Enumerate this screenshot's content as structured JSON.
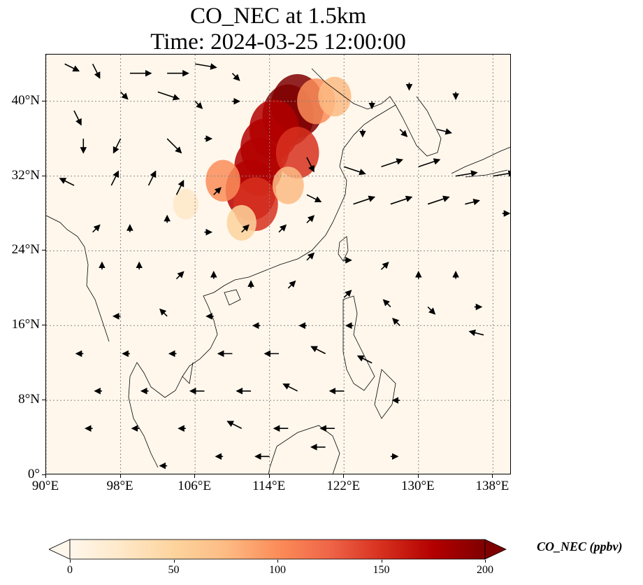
{
  "title": {
    "line1": "CO_NEC at 1.5km",
    "line2": "Time: 2024-03-25 12:00:00"
  },
  "map": {
    "extent": {
      "lon_min": 90,
      "lon_max": 140,
      "lat_min": 0,
      "lat_max": 45
    },
    "lat_ticks": [
      {
        "value": 0,
        "label": "0°"
      },
      {
        "value": 8,
        "label": "8°N"
      },
      {
        "value": 16,
        "label": "16°N"
      },
      {
        "value": 24,
        "label": "24°N"
      },
      {
        "value": 32,
        "label": "32°N"
      },
      {
        "value": 40,
        "label": "40°N"
      }
    ],
    "lon_ticks": [
      {
        "value": 90,
        "label": "90°E"
      },
      {
        "value": 98,
        "label": "98°E"
      },
      {
        "value": 106,
        "label": "106°E"
      },
      {
        "value": 114,
        "label": "114°E"
      },
      {
        "value": 122,
        "label": "122°E"
      },
      {
        "value": 130,
        "label": "130°E"
      },
      {
        "value": 138,
        "label": "138°E"
      }
    ],
    "gridlines": true,
    "plume_regions_lonlat_value": [
      {
        "lon": 117.0,
        "lat": 39.5,
        "value": 200
      },
      {
        "lon": 116.0,
        "lat": 38.5,
        "value": 190
      },
      {
        "lon": 114.5,
        "lat": 37.0,
        "value": 180
      },
      {
        "lon": 113.5,
        "lat": 35.0,
        "value": 175
      },
      {
        "lon": 112.8,
        "lat": 33.0,
        "value": 170
      },
      {
        "lon": 112.0,
        "lat": 30.5,
        "value": 185
      },
      {
        "lon": 112.5,
        "lat": 29.0,
        "value": 150
      },
      {
        "lon": 117.0,
        "lat": 34.5,
        "value": 140
      },
      {
        "lon": 119.0,
        "lat": 40.0,
        "value": 110
      },
      {
        "lon": 109.0,
        "lat": 31.5,
        "value": 90
      },
      {
        "lon": 111.0,
        "lat": 27.0,
        "value": 60
      },
      {
        "lon": 116.0,
        "lat": 31.0,
        "value": 70
      },
      {
        "lon": 105.0,
        "lat": 29.0,
        "value": 35
      },
      {
        "lon": 121.0,
        "lat": 40.5,
        "value": 80
      }
    ],
    "wind_vectors": [
      {
        "lon": 92,
        "lat": 44,
        "u": 2,
        "v": -1
      },
      {
        "lon": 95,
        "lat": 44,
        "u": 1,
        "v": -2
      },
      {
        "lon": 99,
        "lat": 43,
        "u": 3,
        "v": 0
      },
      {
        "lon": 103,
        "lat": 43,
        "u": 3,
        "v": 0
      },
      {
        "lon": 106,
        "lat": 44,
        "u": 3,
        "v": -0.5
      },
      {
        "lon": 110,
        "lat": 43,
        "u": 1,
        "v": -1
      },
      {
        "lon": 93,
        "lat": 39,
        "u": 1,
        "v": -2
      },
      {
        "lon": 98,
        "lat": 41,
        "u": 1,
        "v": -1
      },
      {
        "lon": 102,
        "lat": 41,
        "u": 3,
        "v": -1
      },
      {
        "lon": 106,
        "lat": 40,
        "u": 1,
        "v": -1
      },
      {
        "lon": 110,
        "lat": 40,
        "u": 1,
        "v": 0
      },
      {
        "lon": 94,
        "lat": 36,
        "u": 0,
        "v": -2
      },
      {
        "lon": 98,
        "lat": 36,
        "u": -1,
        "v": -2
      },
      {
        "lon": 103,
        "lat": 36,
        "u": 2,
        "v": -2
      },
      {
        "lon": 107,
        "lat": 36,
        "u": 1,
        "v": 0
      },
      {
        "lon": 93,
        "lat": 31,
        "u": -2,
        "v": 1
      },
      {
        "lon": 97,
        "lat": 31,
        "u": 1,
        "v": 2
      },
      {
        "lon": 101,
        "lat": 31,
        "u": 1,
        "v": 2
      },
      {
        "lon": 104,
        "lat": 30,
        "u": 1,
        "v": 2
      },
      {
        "lon": 108,
        "lat": 30,
        "u": 1,
        "v": 1
      },
      {
        "lon": 95,
        "lat": 26,
        "u": 1,
        "v": 1
      },
      {
        "lon": 99,
        "lat": 26,
        "u": 0,
        "v": 1
      },
      {
        "lon": 103,
        "lat": 27,
        "u": 0,
        "v": 1
      },
      {
        "lon": 107,
        "lat": 26,
        "u": 1,
        "v": 0
      },
      {
        "lon": 111,
        "lat": 26,
        "u": 1,
        "v": 1
      },
      {
        "lon": 115,
        "lat": 26,
        "u": 1,
        "v": 1
      },
      {
        "lon": 118,
        "lat": 27,
        "u": 1,
        "v": 1
      },
      {
        "lon": 118,
        "lat": 30,
        "u": 2,
        "v": -1
      },
      {
        "lon": 118,
        "lat": 34,
        "u": 1,
        "v": -2
      },
      {
        "lon": 122,
        "lat": 33,
        "u": 3,
        "v": -1
      },
      {
        "lon": 126,
        "lat": 33,
        "u": 3,
        "v": 1
      },
      {
        "lon": 130,
        "lat": 33,
        "u": 3,
        "v": 1
      },
      {
        "lon": 134,
        "lat": 32,
        "u": 3,
        "v": 0.5
      },
      {
        "lon": 138,
        "lat": 32,
        "u": 3,
        "v": 0.5
      },
      {
        "lon": 123,
        "lat": 29,
        "u": 3,
        "v": 1
      },
      {
        "lon": 127,
        "lat": 29,
        "u": 3,
        "v": 1
      },
      {
        "lon": 131,
        "lat": 29,
        "u": 3,
        "v": 1
      },
      {
        "lon": 135,
        "lat": 29,
        "u": 2,
        "v": 0.5
      },
      {
        "lon": 139,
        "lat": 28,
        "u": 1,
        "v": 0
      },
      {
        "lon": 124,
        "lat": 37,
        "u": 0,
        "v": -1
      },
      {
        "lon": 128,
        "lat": 37,
        "u": 1,
        "v": -1
      },
      {
        "lon": 132,
        "lat": 37,
        "u": 2,
        "v": -0.5
      },
      {
        "lon": 125,
        "lat": 40,
        "u": 0,
        "v": -1
      },
      {
        "lon": 129,
        "lat": 42,
        "u": 0,
        "v": -1
      },
      {
        "lon": 134,
        "lat": 41,
        "u": 0,
        "v": -1
      },
      {
        "lon": 118,
        "lat": 23,
        "u": 1,
        "v": 1
      },
      {
        "lon": 122,
        "lat": 23,
        "u": 1,
        "v": 0
      },
      {
        "lon": 126,
        "lat": 22,
        "u": 1,
        "v": 1
      },
      {
        "lon": 130,
        "lat": 21,
        "u": 0,
        "v": 1
      },
      {
        "lon": 134,
        "lat": 21,
        "u": 0,
        "v": 1
      },
      {
        "lon": 96,
        "lat": 22,
        "u": 0,
        "v": 1
      },
      {
        "lon": 100,
        "lat": 22,
        "u": 0,
        "v": 1
      },
      {
        "lon": 104,
        "lat": 21,
        "u": 1,
        "v": 1
      },
      {
        "lon": 108,
        "lat": 21,
        "u": 0,
        "v": 1
      },
      {
        "lon": 112,
        "lat": 20,
        "u": 0,
        "v": 1
      },
      {
        "lon": 116,
        "lat": 20,
        "u": 1,
        "v": 1
      },
      {
        "lon": 122,
        "lat": 19,
        "u": 1,
        "v": 1
      },
      {
        "lon": 127,
        "lat": 18,
        "u": -1,
        "v": 1
      },
      {
        "lon": 131,
        "lat": 18,
        "u": 1,
        "v": -1
      },
      {
        "lon": 136,
        "lat": 18,
        "u": 1,
        "v": 0
      },
      {
        "lon": 98,
        "lat": 17,
        "u": -1,
        "v": 0
      },
      {
        "lon": 103,
        "lat": 17,
        "u": -1,
        "v": 1
      },
      {
        "lon": 108,
        "lat": 17,
        "u": -1,
        "v": 0
      },
      {
        "lon": 113,
        "lat": 16,
        "u": -1,
        "v": 0
      },
      {
        "lon": 118,
        "lat": 16,
        "u": -1,
        "v": 0
      },
      {
        "lon": 123,
        "lat": 16,
        "u": -1,
        "v": 0
      },
      {
        "lon": 128,
        "lat": 16,
        "u": -1,
        "v": 1
      },
      {
        "lon": 137,
        "lat": 15,
        "u": -2,
        "v": 0.5
      },
      {
        "lon": 94,
        "lat": 13,
        "u": -1,
        "v": 0
      },
      {
        "lon": 99,
        "lat": 13,
        "u": -1,
        "v": 0
      },
      {
        "lon": 104,
        "lat": 13,
        "u": -1,
        "v": 0
      },
      {
        "lon": 110,
        "lat": 13,
        "u": -2,
        "v": 0
      },
      {
        "lon": 115,
        "lat": 13,
        "u": -2,
        "v": 0
      },
      {
        "lon": 120,
        "lat": 13,
        "u": -2,
        "v": 1
      },
      {
        "lon": 125,
        "lat": 12,
        "u": -2,
        "v": 1
      },
      {
        "lon": 96,
        "lat": 9,
        "u": -1,
        "v": 0
      },
      {
        "lon": 101,
        "lat": 9,
        "u": -1,
        "v": 0
      },
      {
        "lon": 107,
        "lat": 9,
        "u": -2,
        "v": 0
      },
      {
        "lon": 112,
        "lat": 9,
        "u": -2,
        "v": 0
      },
      {
        "lon": 117,
        "lat": 9,
        "u": -2,
        "v": 1
      },
      {
        "lon": 122,
        "lat": 9,
        "u": -2,
        "v": 0
      },
      {
        "lon": 128,
        "lat": 8,
        "u": -1,
        "v": 0
      },
      {
        "lon": 95,
        "lat": 5,
        "u": -1,
        "v": 0
      },
      {
        "lon": 100,
        "lat": 5,
        "u": -1,
        "v": 0
      },
      {
        "lon": 105,
        "lat": 5,
        "u": -1,
        "v": 0
      },
      {
        "lon": 111,
        "lat": 5,
        "u": -2,
        "v": 1
      },
      {
        "lon": 116,
        "lat": 5,
        "u": -2,
        "v": 0
      },
      {
        "lon": 121,
        "lat": 5,
        "u": -2,
        "v": 0
      },
      {
        "lon": 103,
        "lat": 1,
        "u": -1,
        "v": 0
      },
      {
        "lon": 109,
        "lat": 2,
        "u": -1,
        "v": 0
      },
      {
        "lon": 114,
        "lat": 2,
        "u": -2,
        "v": 0
      },
      {
        "lon": 120,
        "lat": 3,
        "u": -2,
        "v": 0
      },
      {
        "lon": 127,
        "lat": 2,
        "u": 1,
        "v": 0
      }
    ]
  },
  "colorbar": {
    "label": "CO_NEC (ppbv)",
    "min": 0,
    "max": 200,
    "ticks": [
      {
        "value": 0,
        "label": "0"
      },
      {
        "value": 50,
        "label": "50"
      },
      {
        "value": 100,
        "label": "100"
      },
      {
        "value": 150,
        "label": "150"
      },
      {
        "value": 200,
        "label": "200"
      }
    ],
    "extend": "both",
    "colormap": [
      "#fff7ec",
      "#fee8c8",
      "#fdd49e",
      "#fdbb84",
      "#fc8d59",
      "#ef6548",
      "#d7301f",
      "#b30000",
      "#7f0000"
    ]
  },
  "colors": {
    "land_line": "#000000",
    "grid_line": "#888888",
    "background": "#fff7ec"
  }
}
